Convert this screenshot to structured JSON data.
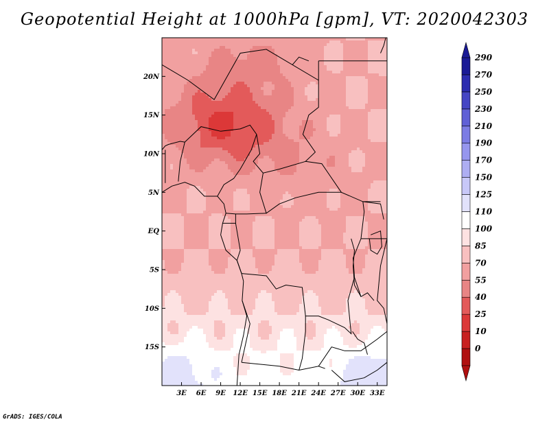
{
  "title": "Geopotential Height at 1000hPa [gpm], VT: 2020042303",
  "footer": "GrADS: IGES/COLA",
  "chart_data": {
    "type": "heatmap",
    "variable": "Geopotential Height",
    "level": "1000hPa",
    "units": "gpm",
    "valid_time": "2020042303",
    "lon_range": [
      0,
      34.5
    ],
    "lat_range": [
      -20,
      25
    ],
    "lon_ticks": [
      3,
      6,
      9,
      12,
      15,
      18,
      21,
      24,
      27,
      30,
      33
    ],
    "lon_tick_labels": [
      "3E",
      "6E",
      "9E",
      "12E",
      "15E",
      "18E",
      "21E",
      "24E",
      "27E",
      "30E",
      "33E"
    ],
    "lat_ticks": [
      20,
      15,
      10,
      5,
      0,
      -5,
      -10,
      -15
    ],
    "lat_tick_labels": [
      "20N",
      "15N",
      "10N",
      "5N",
      "EQ",
      "5S",
      "10S",
      "15S"
    ],
    "colorbar": {
      "levels": [
        0,
        10,
        25,
        40,
        55,
        70,
        85,
        100,
        110,
        125,
        150,
        170,
        190,
        210,
        230,
        250,
        270,
        290
      ],
      "labels": [
        "0",
        "10",
        "25",
        "40",
        "55",
        "70",
        "85",
        "100",
        "110",
        "125",
        "150",
        "170",
        "190",
        "210",
        "230",
        "250",
        "270",
        "290"
      ],
      "colors": [
        "#b01010",
        "#c82020",
        "#dc3838",
        "#e35a5a",
        "#e88585",
        "#f1a0a0",
        "#f8c0c0",
        "#fde2e2",
        "#ffffff",
        "#e2e2fb",
        "#c8c8f8",
        "#aeaef2",
        "#9696ee",
        "#7c7ce4",
        "#6060d6",
        "#4545c4",
        "#2c2cb0",
        "#1a1a96"
      ]
    }
  }
}
